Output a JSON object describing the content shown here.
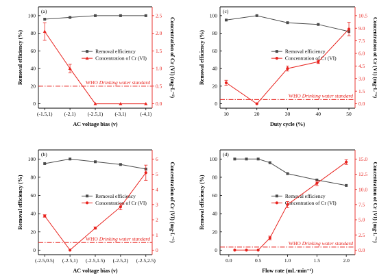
{
  "colors": {
    "removal": "#4a4a4a",
    "concentration": "#e8211c",
    "axis": "#000000"
  },
  "legend": {
    "removal": "Removal efficiency",
    "concentration": "Concentration of Cr (VI)"
  },
  "who_label": {
    "prefix": "WHO ",
    "italic": "Drinking water standard"
  },
  "chart_data": [
    {
      "type": "line",
      "panel_label": "(a)",
      "xlabel": "AC voltage bias (v)",
      "ylabel_left": "Removal efficiency (%)",
      "ylabel_right": "Concentration of Cr (VI) (mg·L⁻¹)",
      "categories": [
        "(-1.5,1)",
        "(-2,1)",
        "(-2.5,1)",
        "(-3,1)",
        "(-4,1)"
      ],
      "x_index": [
        0,
        1,
        2,
        3,
        4
      ],
      "xlim": [
        -0.25,
        4.25
      ],
      "ylim_left": [
        -5,
        110
      ],
      "ylim_right": [
        -0.125,
        2.75
      ],
      "yticks_left": [
        0,
        20,
        40,
        60,
        80,
        100
      ],
      "yticks_right": [
        0,
        0.5,
        1.0,
        1.5,
        2.0,
        2.5
      ],
      "yticks_right_labels": [
        "0.0",
        "0.5",
        "1.0",
        "1.5",
        "2.0",
        "2.5"
      ],
      "who_standard": 0.5,
      "series": [
        {
          "name": "Removal efficiency",
          "axis": "left",
          "marker": "square",
          "values": [
            96,
            98,
            100,
            100,
            100
          ]
        },
        {
          "name": "Concentration of Cr (VI)",
          "axis": "right",
          "marker": "triangle",
          "values": [
            2.05,
            1.0,
            0.0,
            0.0,
            0.0
          ],
          "errors": [
            0.25,
            0.12,
            0.0,
            0.0,
            0.0
          ]
        }
      ]
    },
    {
      "type": "line",
      "panel_label": "(c)",
      "xlabel": "Duty cycle (%)",
      "ylabel_left": "Removal efficiency (%)",
      "ylabel_right": "Concentration of Cr (VI) (mg·L⁻¹)",
      "x": [
        10,
        20,
        30,
        40,
        50
      ],
      "xticks": [
        10,
        20,
        30,
        40,
        50
      ],
      "xlim": [
        8,
        52
      ],
      "ylim_left": [
        -5,
        110
      ],
      "ylim_right": [
        -0.525,
        11.55
      ],
      "yticks_left": [
        0,
        20,
        40,
        60,
        80,
        100
      ],
      "yticks_right": [
        0,
        1.5,
        3,
        4.5,
        6,
        7.5,
        9,
        10.5
      ],
      "yticks_right_labels": [
        "0.0",
        "1.5",
        "3.0",
        "4.5",
        "6.0",
        "7.5",
        "9.0",
        "10.5"
      ],
      "who_standard": 0.5,
      "series": [
        {
          "name": "Removal efficiency",
          "axis": "left",
          "marker": "square",
          "values": [
            95,
            100,
            92,
            90,
            82
          ]
        },
        {
          "name": "Concentration of Cr (VI)",
          "axis": "right",
          "marker": "circle",
          "values": [
            2.5,
            0.0,
            4.2,
            5.0,
            8.9
          ],
          "errors": [
            0.3,
            0.0,
            0.3,
            0.2,
            0.8
          ]
        }
      ]
    },
    {
      "type": "line",
      "panel_label": "(b)",
      "xlabel": "AC voltage bias (v)",
      "ylabel_left": "Removal efficiency (%)",
      "ylabel_right": "Concentration of Cr (VI) (mg·L⁻¹)",
      "categories": [
        "(-2.5,0.5)",
        "(-2.5,1)",
        "(-2.5,1.5)",
        "(-2.5,2)",
        "(-2.5,2.5)"
      ],
      "x_index": [
        0,
        1,
        2,
        3,
        4
      ],
      "xlim": [
        -0.25,
        4.25
      ],
      "ylim_left": [
        -5,
        110
      ],
      "ylim_right": [
        -0.3,
        6.6
      ],
      "yticks_left": [
        0,
        20,
        40,
        60,
        80,
        100
      ],
      "yticks_right": [
        0,
        1,
        2,
        3,
        4,
        5,
        6
      ],
      "yticks_right_labels": [
        "0",
        "1",
        "2",
        "3",
        "4",
        "5",
        "6"
      ],
      "who_standard": 0.5,
      "series": [
        {
          "name": "Removal efficiency",
          "axis": "left",
          "marker": "square",
          "values": [
            95,
            100,
            97,
            94,
            89
          ]
        },
        {
          "name": "Concentration of Cr (VI)",
          "axis": "right",
          "marker": "circle",
          "values": [
            2.25,
            0.0,
            1.45,
            2.85,
            5.1
          ],
          "errors": [
            0.08,
            0.0,
            0.07,
            0.2,
            0.5
          ]
        }
      ]
    },
    {
      "type": "line",
      "panel_label": "(d)",
      "xlabel": "Flow rate (mL·min⁻¹)",
      "ylabel_left": "Removal efficiency (%)",
      "ylabel_right": "Concentration of Cr (VI) (mg·L⁻¹)",
      "x": [
        0.1,
        0.3,
        0.5,
        0.7,
        1.0,
        1.5,
        2.0
      ],
      "xticks": [
        0.0,
        0.5,
        1.0,
        1.5,
        2.0
      ],
      "xticks_labels": [
        "0.0",
        "0.5",
        "1.0",
        "1.5",
        "2.0"
      ],
      "xlim": [
        -0.15,
        2.15
      ],
      "ylim_left": [
        -5,
        110
      ],
      "ylim_right": [
        -0.75,
        16.5
      ],
      "yticks_left": [
        0,
        20,
        40,
        60,
        80,
        100
      ],
      "yticks_right": [
        0,
        2.5,
        5,
        7.5,
        10,
        12.5,
        15
      ],
      "yticks_right_labels": [
        "0.0",
        "2.5",
        "5.0",
        "7.5",
        "10.0",
        "12.5",
        "15.0"
      ],
      "who_standard": 0.5,
      "series": [
        {
          "name": "Removal efficiency",
          "axis": "left",
          "marker": "square",
          "values": [
            100,
            100,
            100,
            96,
            84,
            77,
            71
          ]
        },
        {
          "name": "Concentration of Cr (VI)",
          "axis": "right",
          "marker": "circle",
          "values": [
            0.0,
            0.0,
            0.0,
            2.0,
            7.5,
            11.0,
            14.5
          ],
          "errors": [
            0.0,
            0.0,
            0.0,
            0.3,
            0.5,
            0.4,
            0.4
          ]
        }
      ]
    }
  ]
}
